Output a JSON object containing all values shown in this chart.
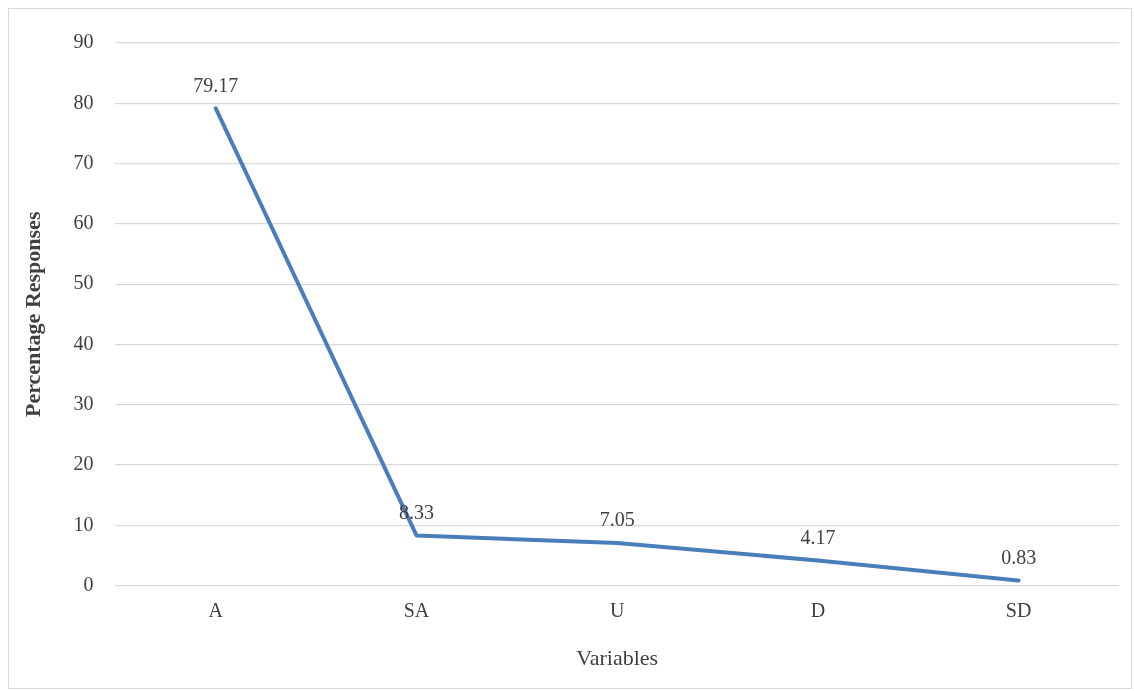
{
  "chart_data": {
    "type": "line",
    "xlabel": "Variables",
    "ylabel": "Percentage Responses",
    "categories": [
      "A",
      "SA",
      "U",
      "D",
      "SD"
    ],
    "series": [
      {
        "color": "#4a7ebb",
        "values": [
          79.17,
          8.33,
          7.05,
          4.17,
          0.83
        ]
      }
    ],
    "ylim": [
      0,
      90
    ],
    "yticks": [
      0,
      10,
      20,
      30,
      40,
      50,
      60,
      70,
      80,
      90
    ],
    "grid": "y",
    "legend": false,
    "marker": "none",
    "line_style": "solid",
    "data_labels": true
  }
}
